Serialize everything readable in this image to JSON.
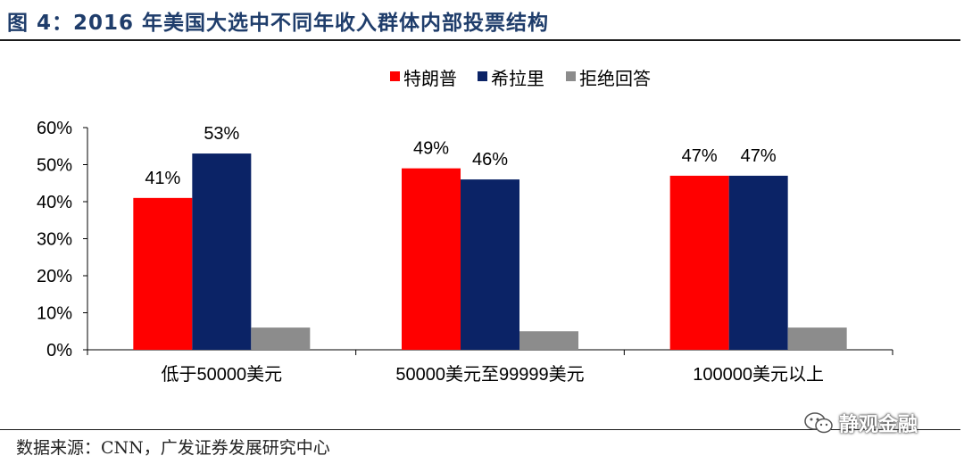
{
  "title": "图 4：2016 年美国大选中不同年收入群体内部投票结构",
  "source": "数据来源：CNN，广发证券发展研究中心",
  "watermark": {
    "text": "静观金融",
    "icon": "wechat-icon"
  },
  "chart_data": {
    "type": "bar",
    "categories": [
      "低于50000美元",
      "50000美元至99999美元",
      "100000美元以上"
    ],
    "series": [
      {
        "name": "特朗普",
        "color": "#ff0000",
        "values": [
          41,
          49,
          47
        ],
        "labels": [
          "41%",
          "49%",
          "47%"
        ]
      },
      {
        "name": "希拉里",
        "color": "#0b2366",
        "values": [
          53,
          46,
          47
        ],
        "labels": [
          "53%",
          "46%",
          "47%"
        ]
      },
      {
        "name": "拒绝回答",
        "color": "#8c8c8c",
        "values": [
          6,
          5,
          6
        ],
        "labels": [
          "",
          "",
          ""
        ]
      }
    ],
    "yticks": [
      "0%",
      "10%",
      "20%",
      "30%",
      "40%",
      "50%",
      "60%"
    ],
    "ylim": [
      0,
      60
    ],
    "xlabel": "",
    "ylabel": "",
    "legend_position": "top-center",
    "grid": false
  }
}
